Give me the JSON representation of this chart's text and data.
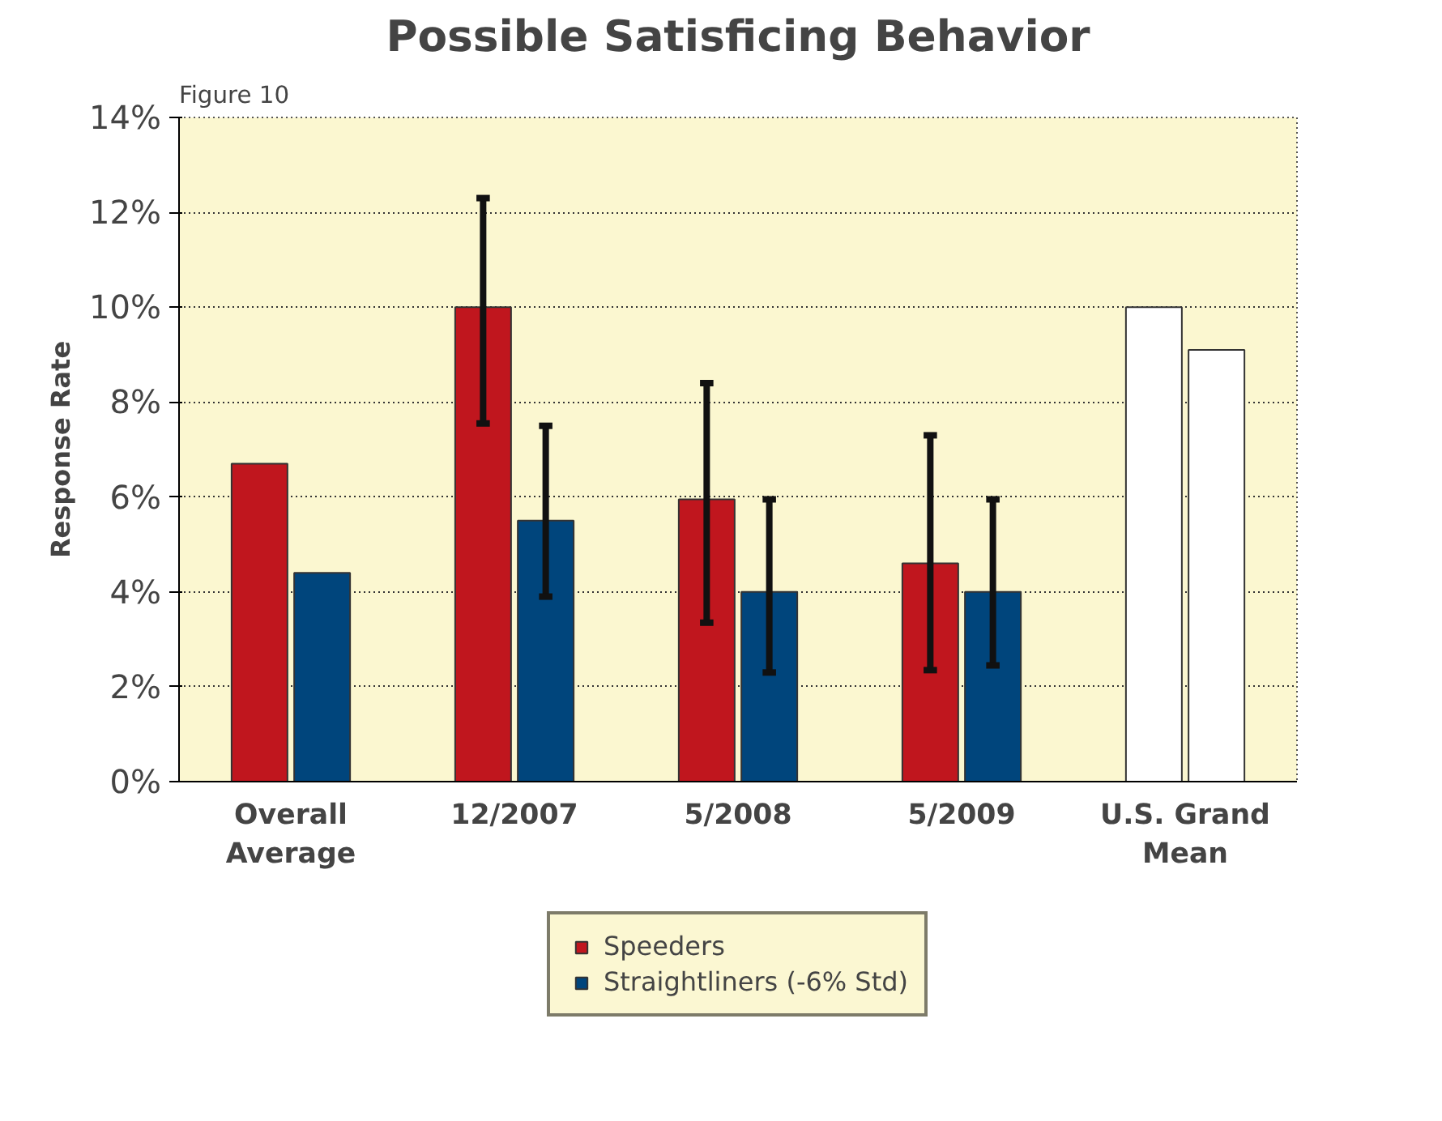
{
  "chart_data": {
    "type": "bar",
    "title": "Possible Satisficing Behavior",
    "ylabel": "Response Rate",
    "annotations": [
      "Figure 10"
    ],
    "categories": [
      "Overall\nAverage",
      "12/2007",
      "5/2008",
      "5/2009",
      "U.S. Grand\nMean"
    ],
    "series": [
      {
        "name": "Speeders",
        "color": "#c0161e",
        "colors": [
          "#c0161e",
          "#c0161e",
          "#c0161e",
          "#c0161e",
          "#ffffff"
        ],
        "values": [
          6.7,
          10.0,
          5.95,
          4.6,
          10.0
        ],
        "errors": [
          null,
          [
            7.55,
            12.3
          ],
          [
            3.35,
            8.4
          ],
          [
            2.35,
            7.3
          ],
          null
        ]
      },
      {
        "name": "Straightliners (-6% Std)",
        "color": "#00457c",
        "colors": [
          "#00457c",
          "#00457c",
          "#00457c",
          "#00457c",
          "#ffffff"
        ],
        "values": [
          4.4,
          5.5,
          4.0,
          4.0,
          9.1
        ],
        "errors": [
          null,
          [
            3.9,
            7.5
          ],
          [
            2.3,
            5.95
          ],
          [
            2.45,
            5.95
          ],
          null
        ]
      }
    ],
    "ylim": [
      0,
      14
    ],
    "yticks": [
      {
        "value": 0,
        "label": "0%"
      },
      {
        "value": 2,
        "label": "2%"
      },
      {
        "value": 4,
        "label": "4%"
      },
      {
        "value": 6,
        "label": "6%"
      },
      {
        "value": 8,
        "label": "8%"
      },
      {
        "value": 10,
        "label": "10%"
      },
      {
        "value": 12,
        "label": "12%"
      },
      {
        "value": 14,
        "label": "14%"
      }
    ],
    "grid": "y",
    "legend": "bottom"
  }
}
